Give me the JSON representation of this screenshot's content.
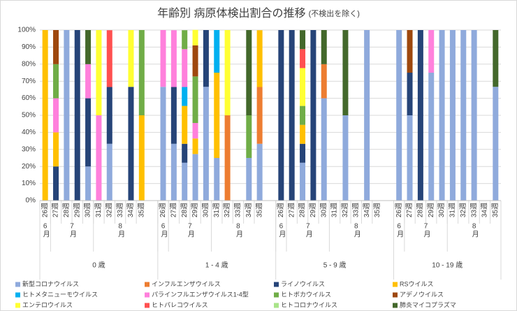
{
  "chart_data": {
    "type": "stacked-bar",
    "title": "年齢別 病原体検出割合の推移",
    "subtitle": "(不検出を除く)",
    "ylim": [
      0,
      100
    ],
    "yticks": [
      {
        "value": 0,
        "label": "0%"
      },
      {
        "value": 10,
        "label": "10%"
      },
      {
        "value": 20,
        "label": "20%"
      },
      {
        "value": 30,
        "label": "30%"
      },
      {
        "value": 40,
        "label": "40%"
      },
      {
        "value": 50,
        "label": "50%"
      },
      {
        "value": 60,
        "label": "60%"
      },
      {
        "value": 70,
        "label": "70%"
      },
      {
        "value": 80,
        "label": "80%"
      },
      {
        "value": 90,
        "label": "90%"
      },
      {
        "value": 100,
        "label": "100%"
      }
    ],
    "grid": true,
    "legend": "bottom",
    "groups": [
      {
        "label": "0 歳",
        "months": [
          {
            "label": "6月",
            "weeks": [
              "26週"
            ]
          },
          {
            "label": "7月",
            "weeks": [
              "27週",
              "28週",
              "29週",
              "30週"
            ]
          },
          {
            "label": "8月",
            "weeks": [
              "31週",
              "32週",
              "33週",
              "34週",
              "35週"
            ]
          }
        ]
      },
      {
        "label": "1 - 4 歳",
        "months": [
          {
            "label": "6月",
            "weeks": [
              "26週"
            ]
          },
          {
            "label": "7月",
            "weeks": [
              "27週",
              "28週",
              "29週",
              "30週"
            ]
          },
          {
            "label": "8月",
            "weeks": [
              "31週",
              "32週",
              "33週",
              "34週",
              "35週"
            ]
          }
        ]
      },
      {
        "label": "5 - 9 歳",
        "months": [
          {
            "label": "6月",
            "weeks": [
              "26週"
            ]
          },
          {
            "label": "7月",
            "weeks": [
              "27週",
              "28週",
              "29週",
              "30週"
            ]
          },
          {
            "label": "8月",
            "weeks": [
              "31週",
              "32週",
              "33週",
              "34週",
              "35週"
            ]
          }
        ]
      },
      {
        "label": "10 - 19 歳",
        "months": [
          {
            "label": "6月",
            "weeks": [
              "26週"
            ]
          },
          {
            "label": "7月",
            "weeks": [
              "27週",
              "28週",
              "29週",
              "30週"
            ]
          },
          {
            "label": "8月",
            "weeks": [
              "31週",
              "32週",
              "33週",
              "34週",
              "35週"
            ]
          }
        ]
      }
    ],
    "series": [
      {
        "name": "新型コロナウイルス",
        "color": "#8faadc",
        "values": [
          0,
          0,
          100,
          0,
          20,
          0,
          33.3,
          0,
          0,
          0,
          66.7,
          33.3,
          22.2,
          27.3,
          66.7,
          25,
          0,
          0,
          25,
          33.3,
          0,
          0,
          22.2,
          0,
          60,
          0,
          50,
          0,
          100,
          0,
          100,
          50,
          0,
          75,
          100,
          100,
          100,
          100,
          0,
          66.7
        ]
      },
      {
        "name": "インフルエンザウイルス",
        "color": "#ed7d31",
        "values": [
          0,
          0,
          0,
          0,
          0,
          0,
          0,
          0,
          0,
          0,
          0,
          0,
          0,
          0,
          0,
          0,
          50,
          0,
          0,
          33.3,
          0,
          0,
          0,
          0,
          20,
          0,
          0,
          0,
          0,
          0,
          0,
          0,
          0,
          0,
          0,
          0,
          0,
          0,
          0,
          0
        ]
      },
      {
        "name": "ライノウイルス",
        "color": "#264478",
        "values": [
          0,
          20,
          0,
          100,
          40,
          0,
          33.3,
          0,
          66.7,
          0,
          0,
          33.3,
          11.1,
          0,
          33.3,
          0,
          0,
          0,
          0,
          0,
          100,
          100,
          11.1,
          100,
          0,
          0,
          0,
          0,
          0,
          0,
          0,
          25,
          100,
          0,
          0,
          0,
          0,
          0,
          0,
          0
        ]
      },
      {
        "name": "RSウイルス",
        "color": "#ffc000",
        "values": [
          100,
          20,
          0,
          0,
          0,
          0,
          0,
          0,
          0,
          50,
          0,
          0,
          22.2,
          9.1,
          0,
          50,
          0,
          0,
          0,
          33.3,
          0,
          0,
          11.1,
          0,
          0,
          0,
          0,
          0,
          0,
          0,
          0,
          0,
          0,
          0,
          0,
          0,
          0,
          0,
          0,
          0
        ]
      },
      {
        "name": "ヒトメタニューモウイルス",
        "color": "#00b0f0",
        "values": [
          0,
          0,
          0,
          0,
          0,
          0,
          0,
          0,
          0,
          0,
          0,
          0,
          11.1,
          0,
          0,
          25,
          0,
          0,
          0,
          0,
          0,
          0,
          0,
          0,
          0,
          0,
          0,
          0,
          0,
          0,
          0,
          0,
          0,
          0,
          0,
          0,
          0,
          0,
          0,
          0
        ]
      },
      {
        "name": "パラインフルエンザウイルス1-4型",
        "color": "#ff80dc",
        "values": [
          0,
          20,
          0,
          0,
          20,
          50,
          0,
          0,
          0,
          0,
          33.3,
          33.3,
          22.2,
          9.1,
          0,
          0,
          0,
          0,
          0,
          0,
          0,
          0,
          0,
          0,
          0,
          0,
          0,
          0,
          0,
          0,
          0,
          0,
          0,
          25,
          0,
          0,
          0,
          0,
          0,
          0
        ]
      },
      {
        "name": "ヒトボカウイルス",
        "color": "#70ad47",
        "values": [
          0,
          20,
          0,
          0,
          0,
          0,
          0,
          0,
          0,
          50,
          0,
          0,
          11.1,
          27.3,
          0,
          0,
          0,
          0,
          25,
          0,
          0,
          0,
          11.1,
          0,
          0,
          0,
          0,
          0,
          0,
          0,
          0,
          0,
          0,
          0,
          0,
          0,
          0,
          0,
          0,
          0
        ]
      },
      {
        "name": "アデノウイルス",
        "color": "#9e480e",
        "values": [
          0,
          20,
          0,
          0,
          0,
          0,
          0,
          0,
          0,
          0,
          0,
          0,
          0,
          18.2,
          0,
          0,
          0,
          0,
          0,
          0,
          0,
          0,
          0,
          0,
          0,
          0,
          0,
          0,
          0,
          0,
          0,
          25,
          0,
          0,
          0,
          0,
          0,
          0,
          0,
          0
        ]
      },
      {
        "name": "エンテロウイルス",
        "color": "#ffff33",
        "values": [
          0,
          0,
          0,
          0,
          0,
          50,
          0,
          0,
          33.3,
          0,
          0,
          0,
          0,
          9.1,
          0,
          0,
          50,
          0,
          0,
          0,
          0,
          0,
          22.2,
          0,
          0,
          0,
          0,
          0,
          0,
          0,
          0,
          0,
          0,
          0,
          0,
          0,
          0,
          0,
          0,
          0
        ]
      },
      {
        "name": "ヒトパレコウイルス",
        "color": "#ff5050",
        "values": [
          0,
          0,
          0,
          0,
          0,
          0,
          33.3,
          0,
          0,
          0,
          0,
          0,
          0,
          0,
          0,
          0,
          0,
          0,
          0,
          0,
          0,
          0,
          11.1,
          0,
          0,
          0,
          0,
          0,
          0,
          0,
          0,
          0,
          0,
          0,
          0,
          0,
          0,
          0,
          0,
          0
        ]
      },
      {
        "name": "ヒトコロナウイルス",
        "color": "#a9e48a",
        "values": [
          0,
          0,
          0,
          0,
          0,
          0,
          0,
          0,
          0,
          0,
          0,
          0,
          0,
          0,
          0,
          0,
          0,
          0,
          0,
          0,
          0,
          0,
          0,
          0,
          0,
          0,
          0,
          0,
          0,
          0,
          0,
          0,
          0,
          0,
          0,
          0,
          0,
          0,
          0,
          0
        ]
      },
      {
        "name": "肺炎マイコプラズマ",
        "color": "#43682b",
        "values": [
          0,
          0,
          0,
          0,
          20,
          0,
          0,
          0,
          0,
          0,
          0,
          0,
          0,
          0,
          0,
          0,
          0,
          0,
          50,
          0,
          0,
          0,
          11.1,
          0,
          20,
          0,
          50,
          0,
          0,
          0,
          0,
          0,
          0,
          0,
          0,
          0,
          0,
          0,
          0,
          33.3
        ]
      }
    ]
  }
}
